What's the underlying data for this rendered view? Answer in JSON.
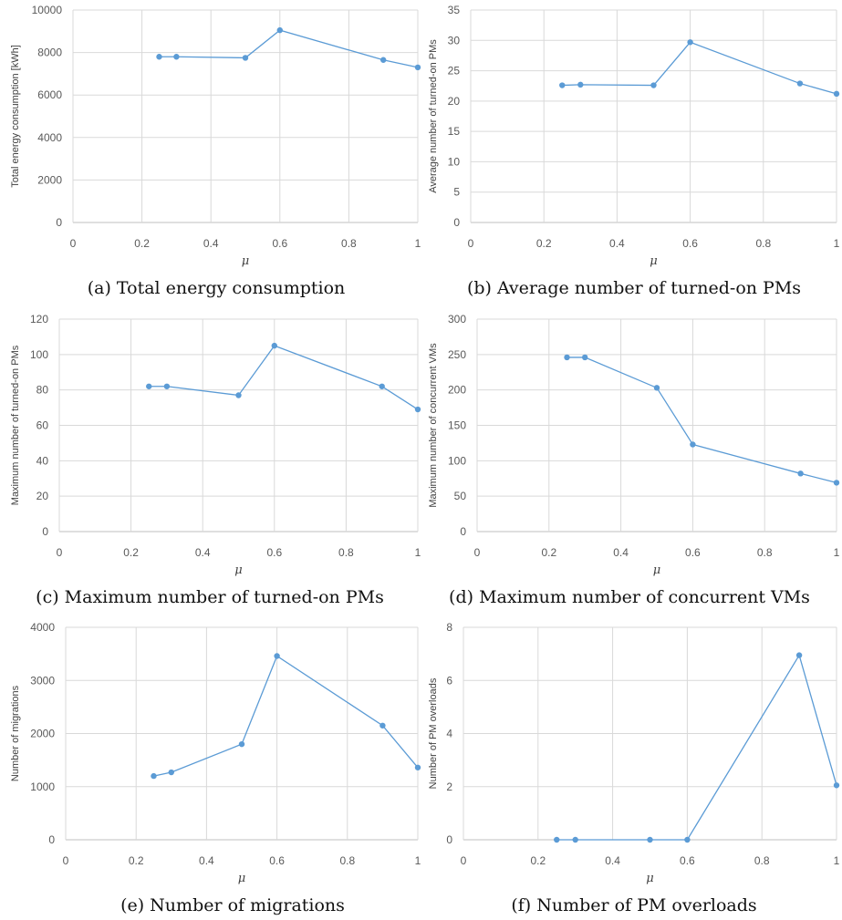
{
  "colors": {
    "series": "#5b9bd5",
    "grid": "#d9d9d9",
    "tick": "#595959"
  },
  "chart_data": [
    {
      "type": "line",
      "caption": "(a) Total energy consumption",
      "ylabel": "Total energy consumption [kWh]",
      "xlabel": "μ",
      "xlim": [
        0,
        1
      ],
      "xticks": [
        0,
        0.2,
        0.4,
        0.6,
        0.8,
        1
      ],
      "xtick_labels": [
        "0",
        "0.2",
        "0.4",
        "0.6",
        "0.8",
        "1"
      ],
      "ylim": [
        0,
        10000
      ],
      "yticks": [
        0,
        2000,
        4000,
        6000,
        8000,
        10000
      ],
      "ytick_labels": [
        "0",
        "2000",
        "4000",
        "6000",
        "8000",
        "10000"
      ],
      "grid": true,
      "x": [
        0.25,
        0.3,
        0.5,
        0.6,
        0.9,
        1.0
      ],
      "y": [
        7800,
        7800,
        7750,
        9050,
        7650,
        7300
      ]
    },
    {
      "type": "line",
      "caption": "(b) Average number of turned-on PMs",
      "ylabel": "Average number of turned-on PMs",
      "xlabel": "μ",
      "xlim": [
        0,
        1
      ],
      "xticks": [
        0,
        0.2,
        0.4,
        0.6,
        0.8,
        1
      ],
      "xtick_labels": [
        "0",
        "0.2",
        "0.4",
        "0.6",
        "0.8",
        "1"
      ],
      "ylim": [
        0,
        35
      ],
      "yticks": [
        0,
        5,
        10,
        15,
        20,
        25,
        30,
        35
      ],
      "ytick_labels": [
        "0",
        "5",
        "10",
        "15",
        "20",
        "25",
        "30",
        "35"
      ],
      "grid": true,
      "x": [
        0.25,
        0.3,
        0.5,
        0.6,
        0.9,
        1.0
      ],
      "y": [
        22.6,
        22.7,
        22.6,
        29.7,
        22.9,
        21.2
      ]
    },
    {
      "type": "line",
      "caption": "(c) Maximum number of turned-on PMs",
      "ylabel": "Maximum number of turned-on PMs",
      "xlabel": "μ",
      "xlim": [
        0,
        1
      ],
      "xticks": [
        0,
        0.2,
        0.4,
        0.6,
        0.8,
        1
      ],
      "xtick_labels": [
        "0",
        "0.2",
        "0.4",
        "0.6",
        "0.8",
        "1"
      ],
      "ylim": [
        0,
        120
      ],
      "yticks": [
        0,
        20,
        40,
        60,
        80,
        100,
        120
      ],
      "ytick_labels": [
        "0",
        "20",
        "40",
        "60",
        "80",
        "100",
        "120"
      ],
      "grid": true,
      "x": [
        0.25,
        0.3,
        0.5,
        0.6,
        0.9,
        1.0
      ],
      "y": [
        82,
        82,
        77,
        105,
        82,
        69
      ]
    },
    {
      "type": "line",
      "caption": "(d) Maximum number of concurrent VMs",
      "ylabel": "Maximum number of concurrent VMs",
      "xlabel": "μ",
      "xlim": [
        0,
        1
      ],
      "xticks": [
        0,
        0.2,
        0.4,
        0.6,
        0.8,
        1
      ],
      "xtick_labels": [
        "0",
        "0.2",
        "0.4",
        "0.6",
        "0.8",
        "1"
      ],
      "ylim": [
        0,
        300
      ],
      "yticks": [
        0,
        50,
        100,
        150,
        200,
        250,
        300
      ],
      "ytick_labels": [
        "0",
        "50",
        "100",
        "150",
        "200",
        "250",
        "300"
      ],
      "grid": true,
      "x": [
        0.25,
        0.3,
        0.5,
        0.6,
        0.9,
        1.0
      ],
      "y": [
        246,
        246,
        203,
        123,
        82,
        69
      ]
    },
    {
      "type": "line",
      "caption": "(e) Number of migrations",
      "ylabel": "Number of migrations",
      "xlabel": "μ",
      "xlim": [
        0,
        1
      ],
      "xticks": [
        0,
        0.2,
        0.4,
        0.6,
        0.8,
        1
      ],
      "xtick_labels": [
        "0",
        "0.2",
        "0.4",
        "0.6",
        "0.8",
        "1"
      ],
      "ylim": [
        0,
        4000
      ],
      "yticks": [
        0,
        1000,
        2000,
        3000,
        4000
      ],
      "ytick_labels": [
        "0",
        "1000",
        "2000",
        "3000",
        "4000"
      ],
      "grid": true,
      "x": [
        0.25,
        0.3,
        0.5,
        0.6,
        0.9,
        1.0
      ],
      "y": [
        1200,
        1270,
        1800,
        3460,
        2150,
        1360
      ]
    },
    {
      "type": "line",
      "caption": "(f) Number of PM overloads",
      "ylabel": "Number of PM overloads",
      "xlabel": "μ",
      "xlim": [
        0,
        1
      ],
      "xticks": [
        0,
        0.2,
        0.4,
        0.6,
        0.8,
        1
      ],
      "xtick_labels": [
        "0",
        "0.2",
        "0.4",
        "0.6",
        "0.8",
        "1"
      ],
      "ylim": [
        0,
        8
      ],
      "yticks": [
        0,
        2,
        4,
        6,
        8
      ],
      "ytick_labels": [
        "0",
        "2",
        "4",
        "6",
        "8"
      ],
      "grid": true,
      "x": [
        0.25,
        0.3,
        0.5,
        0.6,
        0.9,
        1.0
      ],
      "y": [
        0,
        0,
        0,
        0,
        6.95,
        2.05
      ]
    }
  ]
}
